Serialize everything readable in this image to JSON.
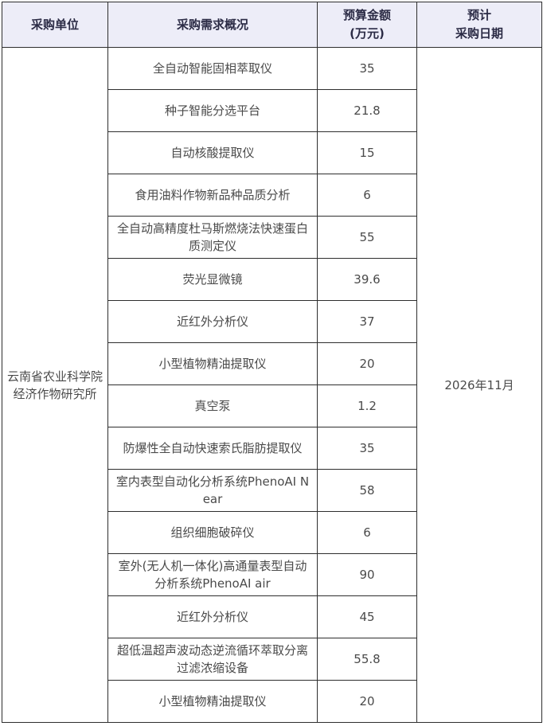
{
  "colors": {
    "header_bg": "#ededf8",
    "border": "#2e2e2e",
    "header_text": "#2b2b45",
    "body_text": "#4a4a4a"
  },
  "table": {
    "headers": {
      "unit": "采购单位",
      "demand": "采购需求概况",
      "budget_line1": "预算金额",
      "budget_line2": "(万元)",
      "date_line1": "预计",
      "date_line2": "采购日期"
    },
    "unit": {
      "line1": "云南省农业科学院",
      "line2": "经济作物研究所"
    },
    "planned_date": "2026年11月",
    "rows": [
      {
        "item": "全自动智能固相萃取仪",
        "budget": "35"
      },
      {
        "item": "种子智能分选平台",
        "budget": "21.8"
      },
      {
        "item": "自动核酸提取仪",
        "budget": "15"
      },
      {
        "item": "食用油料作物新品种品质分析",
        "budget": "6"
      },
      {
        "item": "全自动高精度杜马斯燃烧法快速蛋白质测定仪",
        "budget": "55"
      },
      {
        "item": "荧光显微镜",
        "budget": "39.6"
      },
      {
        "item": "近红外分析仪",
        "budget": "37"
      },
      {
        "item": "小型植物精油提取仪",
        "budget": "20"
      },
      {
        "item": "真空泵",
        "budget": "1.2"
      },
      {
        "item": "防爆性全自动快速索氏脂肪提取仪",
        "budget": "35"
      },
      {
        "item": "室内表型自动化分析系统PhenoAI Near",
        "budget": "58"
      },
      {
        "item": "组织细胞破碎仪",
        "budget": "6"
      },
      {
        "item": "室外(无人机一体化)高通量表型自动分析系统PhenoAI air",
        "budget": "90"
      },
      {
        "item": "近红外分析仪",
        "budget": "45"
      },
      {
        "item": "超低温超声波动态逆流循环萃取分离过滤浓缩设备",
        "budget": "55.8"
      },
      {
        "item": "小型植物精油提取仪",
        "budget": "20"
      }
    ]
  }
}
